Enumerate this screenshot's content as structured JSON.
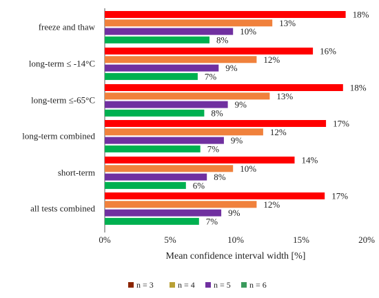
{
  "chart_data": {
    "type": "bar",
    "orientation": "horizontal",
    "xlabel": "Mean confidence interval width [%]",
    "xlim": [
      0,
      20
    ],
    "xticks": [
      "0%",
      "5%",
      "10%",
      "15%",
      "20%"
    ],
    "grid": false,
    "legend_position": "bottom",
    "categories": [
      "freeze and thaw",
      "long-term ≤ -14°C",
      "long-term ≤-65°C",
      "long-term combined",
      "short-term",
      "all tests combined"
    ],
    "series": [
      {
        "name": "n = 3",
        "color": "#ff0000",
        "values": [
          18.4,
          15.9,
          18.2,
          16.9,
          14.5,
          16.8
        ],
        "labels": [
          "18%",
          "16%",
          "18%",
          "17%",
          "14%",
          "17%"
        ]
      },
      {
        "name": "n = 4",
        "color": "#f0813c",
        "values": [
          12.8,
          11.6,
          12.6,
          12.1,
          9.8,
          11.6
        ],
        "labels": [
          "13%",
          "12%",
          "13%",
          "12%",
          "10%",
          "12%"
        ]
      },
      {
        "name": "n = 5",
        "color": "#7030a0",
        "values": [
          9.8,
          8.7,
          9.4,
          9.1,
          7.8,
          8.9
        ],
        "labels": [
          "10%",
          "9%",
          "9%",
          "9%",
          "8%",
          "9%"
        ]
      },
      {
        "name": "n = 6",
        "color": "#00b050",
        "values": [
          8.0,
          7.1,
          7.6,
          7.3,
          6.2,
          7.2
        ],
        "labels": [
          "8%",
          "7%",
          "8%",
          "7%",
          "6%",
          "7%"
        ]
      }
    ],
    "legend": [
      {
        "label": "n = 3",
        "color": "#8b2500"
      },
      {
        "label": "n = 4",
        "color": "#b8a035"
      },
      {
        "label": "n = 5",
        "color": "#7030a0"
      },
      {
        "label": "n = 6",
        "color": "#3a9a5c"
      }
    ]
  }
}
